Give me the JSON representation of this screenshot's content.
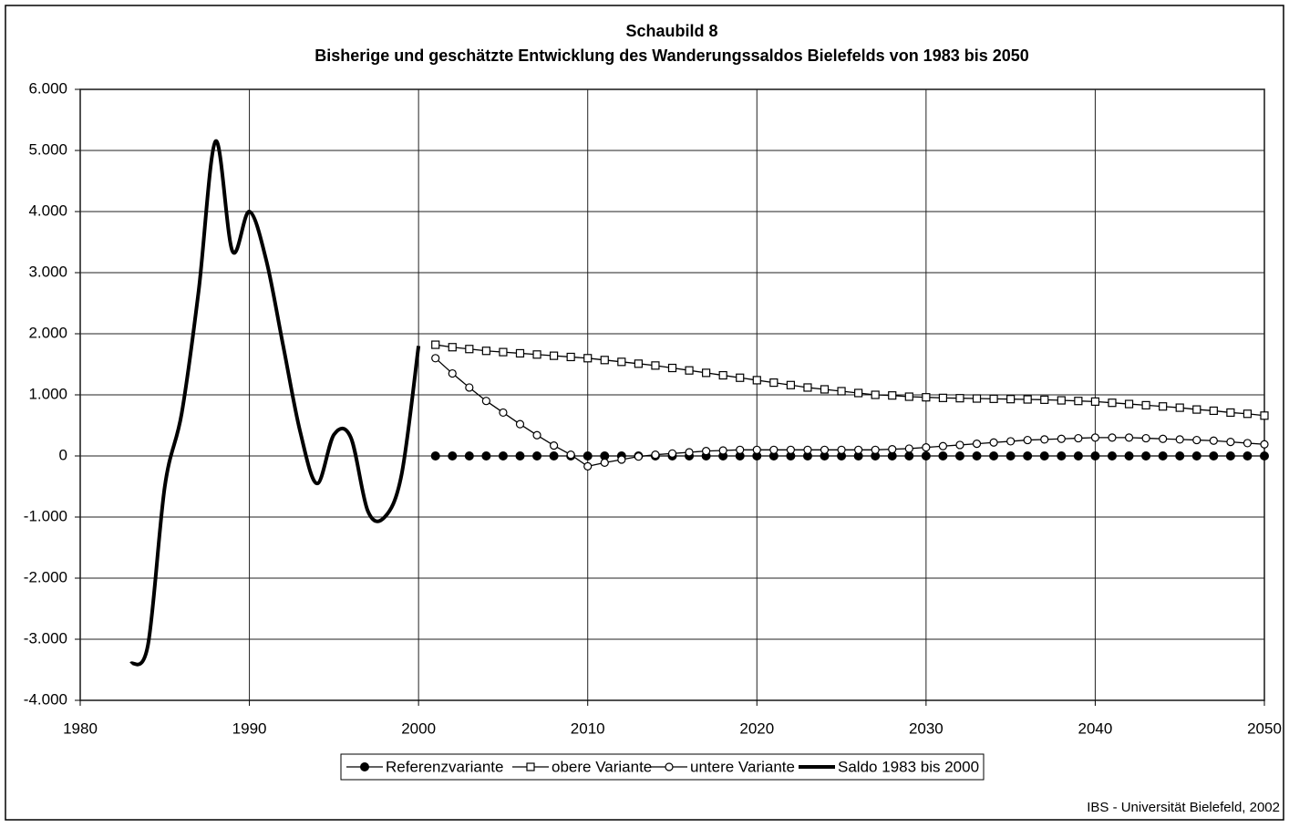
{
  "chart_data": {
    "type": "line",
    "title": "Schaubild 8",
    "subtitle": "Bisherige und geschätzte Entwicklung des Wanderungssaldos Bielefelds von 1983 bis 2050",
    "source": "IBS - Universität Bielefeld, 2002",
    "xlim": [
      1980,
      2050
    ],
    "xticks": [
      1980,
      1990,
      2000,
      2010,
      2020,
      2030,
      2040,
      2050
    ],
    "ylim": [
      -4000,
      6000
    ],
    "yticks": [
      {
        "value": -4000,
        "label": "-4.000"
      },
      {
        "value": -3000,
        "label": "-3.000"
      },
      {
        "value": -2000,
        "label": "-2.000"
      },
      {
        "value": -1000,
        "label": "-1.000"
      },
      0,
      {
        "value": 1000,
        "label": "1.000"
      },
      {
        "value": 2000,
        "label": "2.000"
      },
      {
        "value": 3000,
        "label": "3.000"
      },
      {
        "value": 4000,
        "label": "4.000"
      },
      {
        "value": 5000,
        "label": "5.000"
      },
      {
        "value": 6000,
        "label": "6.000"
      }
    ],
    "grid": true,
    "legend": "bottom",
    "series": [
      {
        "name": "Referenzvariante",
        "color": "#000000",
        "marker": "filled-circle",
        "x": [
          2001,
          2002,
          2003,
          2004,
          2005,
          2006,
          2007,
          2008,
          2009,
          2010,
          2011,
          2012,
          2013,
          2014,
          2015,
          2016,
          2017,
          2018,
          2019,
          2020,
          2021,
          2022,
          2023,
          2024,
          2025,
          2026,
          2027,
          2028,
          2029,
          2030,
          2031,
          2032,
          2033,
          2034,
          2035,
          2036,
          2037,
          2038,
          2039,
          2040,
          2041,
          2042,
          2043,
          2044,
          2045,
          2046,
          2047,
          2048,
          2049,
          2050
        ],
        "values": [
          0,
          0,
          0,
          0,
          0,
          0,
          0,
          0,
          0,
          0,
          0,
          0,
          0,
          0,
          0,
          0,
          0,
          0,
          0,
          0,
          0,
          0,
          0,
          0,
          0,
          0,
          0,
          0,
          0,
          0,
          0,
          0,
          0,
          0,
          0,
          0,
          0,
          0,
          0,
          0,
          0,
          0,
          0,
          0,
          0,
          0,
          0,
          0,
          0,
          0
        ]
      },
      {
        "name": "obere Variante",
        "color": "#000000",
        "marker": "square",
        "x": [
          2001,
          2002,
          2003,
          2004,
          2005,
          2006,
          2007,
          2008,
          2009,
          2010,
          2011,
          2012,
          2013,
          2014,
          2015,
          2016,
          2017,
          2018,
          2019,
          2020,
          2021,
          2022,
          2023,
          2024,
          2025,
          2026,
          2027,
          2028,
          2029,
          2030,
          2031,
          2032,
          2033,
          2034,
          2035,
          2036,
          2037,
          2038,
          2039,
          2040,
          2041,
          2042,
          2043,
          2044,
          2045,
          2046,
          2047,
          2048,
          2049,
          2050
        ],
        "values": [
          1820,
          1780,
          1750,
          1720,
          1700,
          1680,
          1660,
          1640,
          1620,
          1600,
          1570,
          1540,
          1510,
          1480,
          1440,
          1400,
          1360,
          1320,
          1280,
          1240,
          1200,
          1160,
          1120,
          1090,
          1060,
          1030,
          1000,
          990,
          970,
          960,
          950,
          945,
          940,
          935,
          930,
          925,
          920,
          910,
          900,
          890,
          870,
          850,
          830,
          810,
          790,
          760,
          740,
          710,
          690,
          660
        ]
      },
      {
        "name": "untere Variante",
        "color": "#000000",
        "marker": "circle",
        "x": [
          2001,
          2002,
          2003,
          2004,
          2005,
          2006,
          2007,
          2008,
          2009,
          2010,
          2011,
          2012,
          2013,
          2014,
          2015,
          2016,
          2017,
          2018,
          2019,
          2020,
          2021,
          2022,
          2023,
          2024,
          2025,
          2026,
          2027,
          2028,
          2029,
          2030,
          2031,
          2032,
          2033,
          2034,
          2035,
          2036,
          2037,
          2038,
          2039,
          2040,
          2041,
          2042,
          2043,
          2044,
          2045,
          2046,
          2047,
          2048,
          2049,
          2050
        ],
        "values": [
          1600,
          1350,
          1120,
          900,
          710,
          520,
          340,
          170,
          20,
          -170,
          -110,
          -60,
          -10,
          20,
          40,
          60,
          80,
          90,
          100,
          100,
          100,
          100,
          100,
          100,
          100,
          100,
          100,
          110,
          120,
          140,
          160,
          180,
          200,
          220,
          240,
          260,
          270,
          280,
          290,
          300,
          300,
          300,
          290,
          280,
          270,
          260,
          250,
          230,
          210,
          190
        ]
      },
      {
        "name": "Saldo 1983 bis 2000",
        "color": "#000000",
        "marker": "none",
        "x": [
          1983,
          1984,
          1985,
          1986,
          1987,
          1988,
          1989,
          1990,
          1991,
          1992,
          1993,
          1994,
          1995,
          1996,
          1997,
          1998,
          1999,
          2000
        ],
        "values": [
          -3400,
          -3100,
          -500,
          700,
          2700,
          5150,
          3350,
          4000,
          3200,
          1800,
          400,
          -450,
          350,
          300,
          -900,
          -1000,
          -300,
          1800
        ]
      }
    ]
  }
}
